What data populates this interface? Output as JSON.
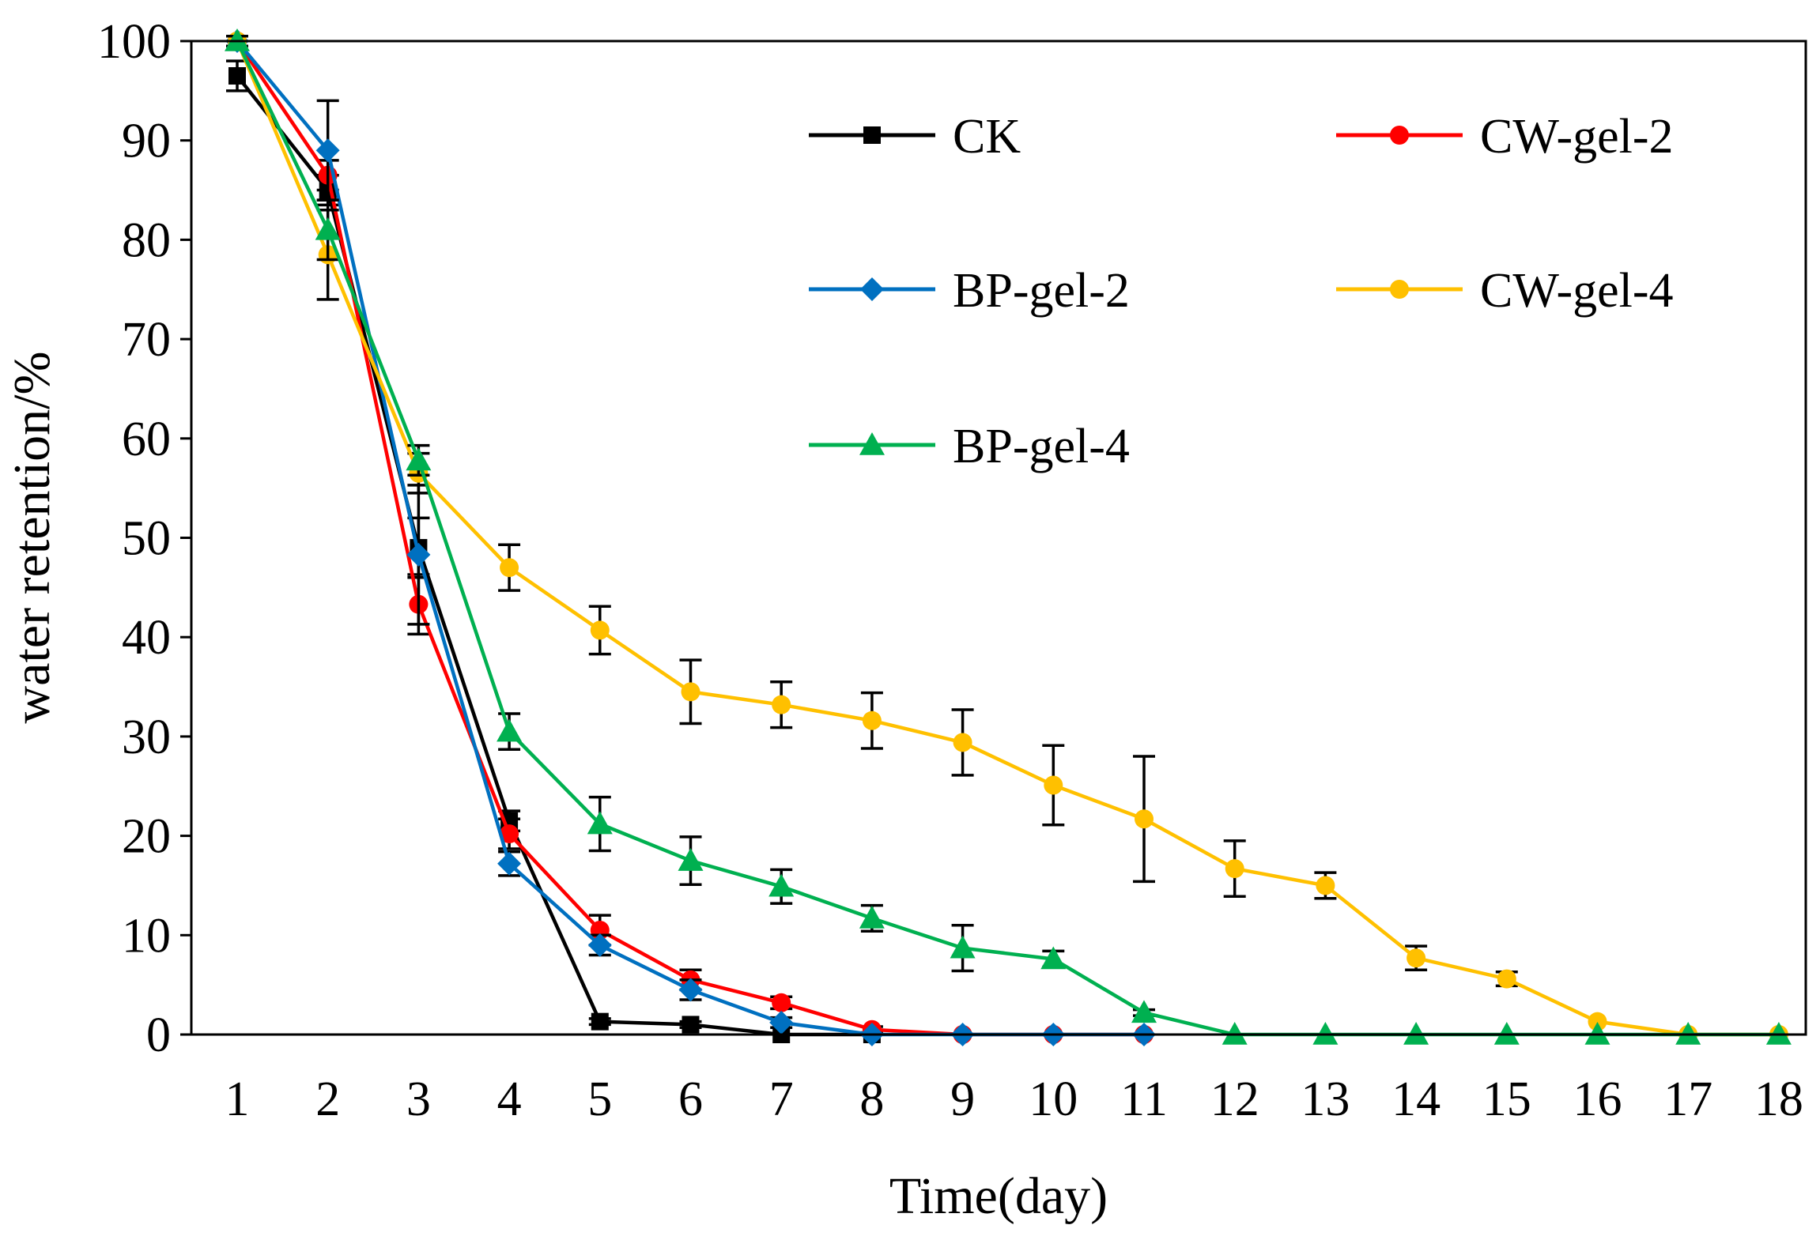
{
  "chart_data": {
    "type": "line",
    "title": "",
    "xlabel": "Time(day)",
    "ylabel": "water retention/%",
    "x": [
      1,
      2,
      3,
      4,
      5,
      6,
      7,
      8,
      9,
      10,
      11,
      12,
      13,
      14,
      15,
      16,
      17,
      18
    ],
    "xlim": [
      0.5,
      18.5
    ],
    "ylim": [
      0,
      100
    ],
    "ytick_step": 10,
    "grid": false,
    "legend": {
      "placement": "top-right",
      "columns": 2
    },
    "series": [
      {
        "name": "CK",
        "color": "#000000",
        "marker": "square",
        "x": [
          1,
          2,
          3,
          4,
          5,
          6,
          7,
          8
        ],
        "values": [
          96.5,
          85.0,
          49.0,
          21.5,
          1.3,
          1.0,
          0.0,
          0.0
        ],
        "errors": [
          1.5,
          1.5,
          3.0,
          1.0,
          0.3,
          0.3,
          0.0,
          0.0
        ]
      },
      {
        "name": "CW-gel-2",
        "color": "#ff0000",
        "marker": "circle",
        "x": [
          1,
          2,
          3,
          4,
          5,
          6,
          7,
          8,
          9,
          10,
          11
        ],
        "values": [
          100,
          86.5,
          43.3,
          20.2,
          10.5,
          5.5,
          3.2,
          0.5,
          0.0,
          0.0,
          0.0
        ],
        "errors": [
          0.5,
          1.5,
          3.0,
          1.5,
          1.5,
          1.0,
          0.6,
          0.3,
          0.0,
          0.0,
          0.0
        ]
      },
      {
        "name": "BP-gel-2",
        "color": "#0070c0",
        "marker": "diamond",
        "x": [
          1,
          2,
          3,
          4,
          5,
          6,
          7,
          8,
          9,
          10,
          11
        ],
        "values": [
          100,
          89.0,
          48.3,
          17.2,
          9.0,
          4.5,
          1.2,
          0.0,
          0.0,
          0.0,
          0.0
        ],
        "errors": [
          0.5,
          5.0,
          7.0,
          1.2,
          1.0,
          1.0,
          0.5,
          0.0,
          0.0,
          0.0,
          0.0
        ]
      },
      {
        "name": "CW-gel-4",
        "color": "#ffc000",
        "marker": "circle",
        "x": [
          1,
          2,
          3,
          4,
          5,
          6,
          7,
          8,
          9,
          10,
          11,
          12,
          13,
          14,
          15,
          16,
          17,
          18
        ],
        "values": [
          100,
          78.5,
          56.5,
          47.0,
          40.7,
          34.5,
          33.2,
          31.6,
          29.4,
          25.1,
          21.7,
          16.7,
          15.0,
          7.7,
          5.6,
          1.3,
          0.0,
          0.0
        ],
        "errors": [
          0.5,
          4.5,
          2.0,
          2.3,
          2.4,
          3.2,
          2.3,
          2.8,
          3.3,
          4.0,
          6.3,
          2.8,
          1.3,
          1.2,
          0.7,
          0.5,
          0.0,
          0.0
        ],
        "error_bars_shown": [
          false,
          true,
          true,
          true,
          true,
          true,
          true,
          true,
          true,
          true,
          true,
          true,
          true,
          true,
          true,
          false,
          false,
          false
        ]
      },
      {
        "name": "BP-gel-4",
        "color": "#00b050",
        "marker": "triangle",
        "x": [
          1,
          2,
          3,
          4,
          5,
          6,
          7,
          8,
          9,
          10,
          11,
          12,
          13,
          14,
          15,
          16,
          17,
          18
        ],
        "values": [
          100,
          81.0,
          57.8,
          30.5,
          21.2,
          17.5,
          14.9,
          11.7,
          8.7,
          7.6,
          2.2,
          0.0,
          0.0,
          0.0,
          0.0,
          0.0,
          0.0,
          0.0
        ],
        "errors": [
          0.5,
          3.0,
          1.5,
          1.8,
          2.7,
          2.4,
          1.7,
          1.3,
          2.3,
          0.8,
          0.3,
          0.0,
          0.0,
          0.0,
          0.0,
          0.0,
          0.0,
          0.0
        ]
      }
    ]
  }
}
